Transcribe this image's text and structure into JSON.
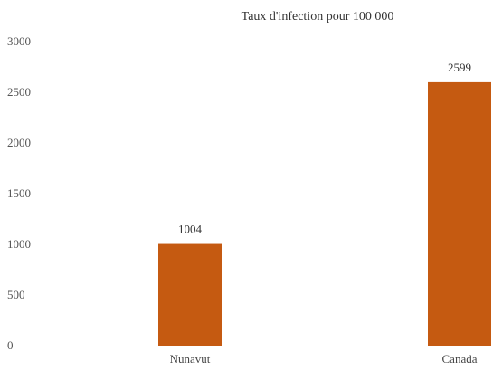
{
  "chart_data": {
    "type": "bar",
    "title": "Taux d'infection pour 100 000",
    "categories": [
      "Nunavut",
      "Canada"
    ],
    "values": [
      1004,
      2599
    ],
    "data_labels": [
      "1004",
      "2599"
    ],
    "ylim": [
      0,
      3000
    ],
    "yticks": [
      0,
      500,
      1000,
      1500,
      2000,
      2500,
      3000
    ],
    "ytick_labels": [
      "0",
      "500",
      "1000",
      "1500",
      "2000",
      "2500",
      "3000"
    ],
    "xlabel": "",
    "ylabel": "",
    "grid": false,
    "bar_color": "#C55A11"
  }
}
